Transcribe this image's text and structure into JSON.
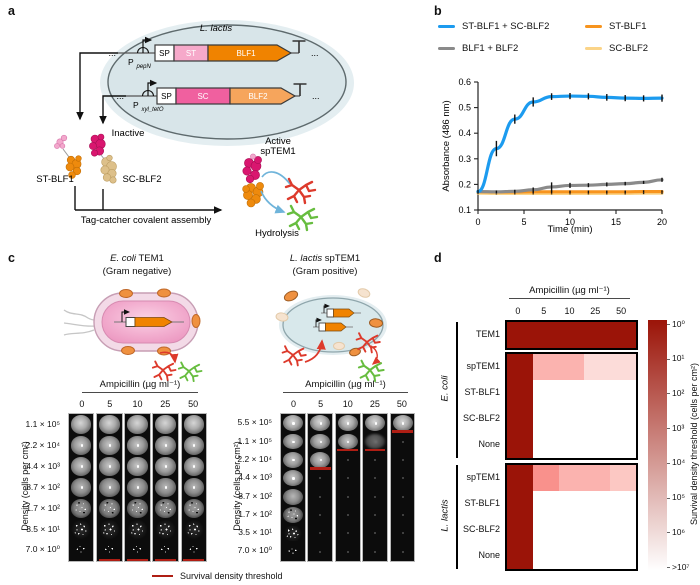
{
  "panel_labels": {
    "a": "a",
    "b": "b",
    "c": "c",
    "d": "d"
  },
  "panel_a": {
    "organism": "L. lactis",
    "dots": "...",
    "constructs": [
      {
        "promoter": "P",
        "promoter_sub": "pepN",
        "sp": "SP",
        "tag": "ST",
        "gene": "BLF1"
      },
      {
        "promoter": "P",
        "promoter_sub": "xyl_tetO",
        "sp": "SP",
        "tag": "SC",
        "gene": "BLF2"
      }
    ],
    "inactive": "Inactive",
    "protein_left": "ST-BLF1",
    "protein_right": "SC-BLF2",
    "assembly": "Tag-catcher covalent assembly",
    "active_line1": "Active",
    "active_line2": "spTEM1",
    "hydrolysis": "Hydrolysis"
  },
  "chart_data": [
    {
      "type": "line",
      "title": "",
      "xlabel": "Time (min)",
      "ylabel": "Absorbance (486 nm)",
      "xlim": [
        0,
        20
      ],
      "ylim": [
        0.1,
        0.6
      ],
      "xticks": [
        0,
        5,
        10,
        15,
        20
      ],
      "yticks": [
        0.1,
        0.2,
        0.3,
        0.4,
        0.5,
        0.6
      ],
      "x": [
        0,
        2,
        4,
        6,
        8,
        10,
        12,
        14,
        16,
        18,
        20
      ],
      "series": [
        {
          "name": "ST-BLF1 + SC-BLF2",
          "color": "#1C9BEF",
          "values": [
            0.172,
            0.34,
            0.455,
            0.522,
            0.543,
            0.545,
            0.544,
            0.54,
            0.537,
            0.536,
            0.537
          ],
          "errors": [
            0.006,
            0.03,
            0.018,
            0.018,
            0.013,
            0.012,
            0.012,
            0.013,
            0.012,
            0.012,
            0.014
          ]
        },
        {
          "name": "BLF1 + BLF2",
          "color": "#8A8A8A",
          "values": [
            0.172,
            0.171,
            0.173,
            0.179,
            0.19,
            0.196,
            0.197,
            0.2,
            0.203,
            0.208,
            0.218
          ],
          "errors": [
            0.005,
            0.005,
            0.006,
            0.009,
            0.018,
            0.01,
            0.008,
            0.008,
            0.007,
            0.006,
            0.008
          ]
        },
        {
          "name": "ST-BLF1",
          "color": "#F7941E",
          "values": [
            0.171,
            0.17,
            0.17,
            0.171,
            0.171,
            0.171,
            0.171,
            0.171,
            0.171,
            0.172,
            0.172
          ],
          "errors": [
            0.005,
            0.005,
            0.005,
            0.005,
            0.005,
            0.005,
            0.005,
            0.005,
            0.005,
            0.005,
            0.005
          ]
        },
        {
          "name": "SC-BLF2",
          "color": "#FBD488",
          "values": [
            0.166,
            0.165,
            0.165,
            0.165,
            0.165,
            0.165,
            0.165,
            0.165,
            0.165,
            0.166,
            0.166
          ],
          "errors": [
            0.004,
            0.004,
            0.004,
            0.004,
            0.004,
            0.004,
            0.004,
            0.004,
            0.004,
            0.004,
            0.004
          ]
        }
      ],
      "legend_order": [
        0,
        2,
        1,
        3
      ],
      "grid": false,
      "legend_position": "top"
    },
    {
      "type": "heatmap",
      "x_title": "Ampicillin (µg ml⁻¹)",
      "columns": [
        "0",
        "5",
        "10",
        "25",
        "50"
      ],
      "blocks": [
        {
          "rows": [
            {
              "label": "TEM1",
              "values": [
                "1e0",
                "1e0",
                "1e0",
                "1e0",
                "1e0"
              ]
            }
          ]
        },
        {
          "rows": [
            {
              "label": "spTEM1",
              "values": [
                "1e0",
                "1.1e5",
                "1.1e5",
                "1e6",
                "1e6"
              ]
            },
            {
              "label": "ST-BLF1",
              "values": [
                "1e0",
                ">1e7",
                ">1e7",
                ">1e7",
                ">1e7"
              ]
            },
            {
              "label": "SC-BLF2",
              "values": [
                "1e0",
                ">1e7",
                ">1e7",
                ">1e7",
                ">1e7"
              ]
            },
            {
              "label": "None",
              "values": [
                "1e0",
                ">1e7",
                ">1e7",
                ">1e7",
                ">1e7"
              ]
            }
          ]
        },
        {
          "rows": [
            {
              "label": "spTEM1",
              "values": [
                "1e0",
                "2.2e4",
                "1.1e5",
                "1.1e5",
                "5.5e5"
              ]
            },
            {
              "label": "ST-BLF1",
              "values": [
                "1e0",
                ">1e7",
                ">1e7",
                ">1e7",
                ">1e7"
              ]
            },
            {
              "label": "SC-BLF2",
              "values": [
                "1e0",
                ">1e7",
                ">1e7",
                ">1e7",
                ">1e7"
              ]
            },
            {
              "label": "None",
              "values": [
                "1e0",
                ">1e7",
                ">1e7",
                ">1e7",
                ">1e7"
              ]
            }
          ]
        }
      ],
      "brackets": [
        {
          "name": "E. coli",
          "from_block": 0,
          "to_block": 1
        },
        {
          "name": "L. lactis",
          "from_block": 2,
          "to_block": 2
        }
      ],
      "value_colors": {
        "1e0": "#9B1408",
        "2.2e4": "#F9918C",
        "1.1e5": "#FBB3AF",
        "5.5e5": "#FCC8C3",
        "1e6": "#FCDCD9",
        ">1e7": "#FFFFFF"
      },
      "colorbar": {
        "label": "Survival density threshold (cells per cm²)",
        "ticks": [
          "10⁰",
          "10¹",
          "10²",
          "10³",
          "10⁴",
          "10⁵",
          "10⁶",
          ">10⁷"
        ],
        "top_color": "#9B1408",
        "bottom_color": "#FFFFFF"
      }
    }
  ],
  "panel_c": {
    "left": {
      "title_italic": "E. coli",
      "title_rest": " TEM1",
      "subtitle": "(Gram negative)",
      "amp_header": "Ampicillin (µg ml⁻¹)",
      "columns": [
        "0",
        "5",
        "10",
        "25",
        "50"
      ],
      "density_axis": "Density (cells per cm²)",
      "densities": [
        "1.1 × 10⁵",
        "2.2 × 10⁴",
        "4.4 × 10³",
        "8.7 × 10²",
        "1.7 × 10²",
        "3.5 × 10¹",
        "7.0 × 10⁰"
      ],
      "visible_rows": [
        7,
        7,
        7,
        7,
        7
      ],
      "red_line_after_row": [
        null,
        6,
        6,
        6,
        6
      ]
    },
    "right": {
      "title_italic": "L. lactis",
      "title_rest": " spTEM1",
      "subtitle": "(Gram positive)",
      "amp_header": "Ampicillin (µg ml⁻¹)",
      "columns": [
        "0",
        "5",
        "10",
        "25",
        "50"
      ],
      "density_axis": "Density (cells per cm²)",
      "densities": [
        "5.5 × 10⁵",
        "1.1 × 10⁵",
        "2.2 × 10⁴",
        "4.4 × 10³",
        "8.7 × 10²",
        "1.7 × 10²",
        "3.5 × 10¹",
        "7.0 × 10⁰"
      ],
      "visible_rows": [
        8,
        3,
        2,
        2,
        1
      ],
      "red_line_after_row": [
        null,
        2,
        1,
        1,
        0
      ],
      "faint_cells": [
        {
          "col": 3,
          "row": 1
        }
      ]
    },
    "threshold_legend": "Survival density threshold",
    "threshold_color": "#AF1E14"
  }
}
